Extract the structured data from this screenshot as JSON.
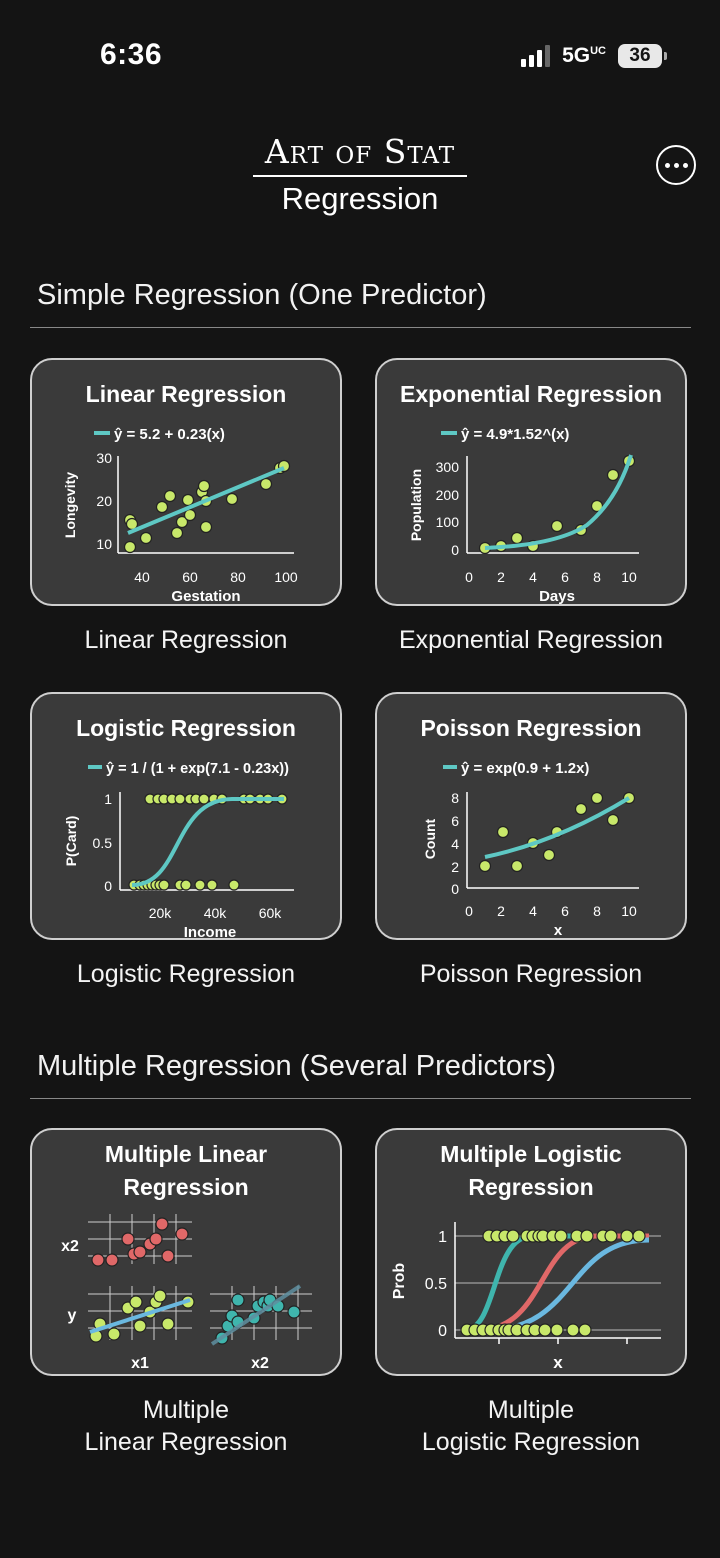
{
  "status": {
    "time": "6:36",
    "network": "5G",
    "battery": "36"
  },
  "header": {
    "brand": "Art of Stat",
    "subtitle": "Regression"
  },
  "sections": {
    "simple": "Simple Regression (One Predictor)",
    "multiple": "Multiple Regression (Several Predictors)"
  },
  "cards": {
    "linear": {
      "title": "Linear Regression",
      "equation": "ŷ = 5.2 + 0.23(x)",
      "label": "Linear Regression",
      "xlabel": "Gestation",
      "ylabel": "Longevity",
      "xticks": [
        "40",
        "60",
        "80",
        "100"
      ],
      "yticks": [
        "10",
        "20",
        "30"
      ]
    },
    "exponential": {
      "title": "Exponential Regression",
      "equation": "ŷ = 4.9*1.52^(x)",
      "label": "Exponential Regression",
      "xlabel": "Days",
      "ylabel": "Population",
      "xticks": [
        "0",
        "2",
        "4",
        "6",
        "8",
        "10"
      ],
      "yticks": [
        "0",
        "100",
        "200",
        "300"
      ]
    },
    "logistic": {
      "title": "Logistic Regression",
      "equation": "ŷ = 1 / (1 + exp(7.1 - 0.23x))",
      "label": "Logistic Regression",
      "xlabel": "Income",
      "ylabel": "P(Card)",
      "xticks": [
        "20k",
        "40k",
        "60k"
      ],
      "yticks": [
        "0",
        "0.5",
        "1"
      ]
    },
    "poisson": {
      "title": "Poisson Regression",
      "equation": "ŷ = exp(0.9 + 1.2x)",
      "label": "Poisson Regression",
      "xlabel": "x",
      "ylabel": "Count",
      "xticks": [
        "0",
        "2",
        "4",
        "6",
        "8",
        "10"
      ],
      "yticks": [
        "0",
        "2",
        "4",
        "6",
        "8"
      ]
    },
    "multiple_linear": {
      "title_line1": "Multiple Linear",
      "title_line2": "Regression",
      "label_line1": "Multiple",
      "label_line2": "Linear Regression",
      "x2label": "x2",
      "ylabel": "y",
      "x1label": "x1",
      "x2bottom": "x2"
    },
    "multiple_logistic": {
      "title_line1": "Multiple Logistic",
      "title_line2": "Regression",
      "label_line1": "Multiple",
      "label_line2": "Logistic Regression",
      "xlabel": "x",
      "ylabel": "Prob",
      "yticks": [
        "0",
        "0.5",
        "1"
      ]
    }
  },
  "colors": {
    "point": "#c8e86a",
    "fit": "#5ec8c4",
    "red": "#e06868",
    "blue": "#6ab8e0",
    "teal": "#3fb5ad"
  }
}
